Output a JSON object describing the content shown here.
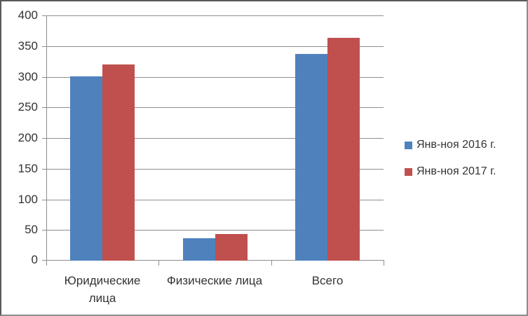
{
  "window": {
    "background": "#ffffff",
    "border_color": "#8c8c8c"
  },
  "chart_data": {
    "type": "bar",
    "title": "",
    "xlabel": "",
    "ylabel": "",
    "categories": [
      "Юридические лица",
      "Физические лица",
      "Всего"
    ],
    "category_display_lines": [
      [
        "Юридические",
        "лица"
      ],
      [
        "Физические лица"
      ],
      [
        "Всего"
      ]
    ],
    "series": [
      {
        "name": "Янв-ноя 2016 г.",
        "color": "#4F81BD",
        "values": [
          300,
          37,
          337
        ]
      },
      {
        "name": "Янв-ноя 2017 г.",
        "color": "#C0504D",
        "values": [
          320,
          43,
          363
        ]
      }
    ],
    "ylim": [
      0,
      400
    ],
    "ytick_step": 50,
    "yticks": [
      0,
      50,
      100,
      150,
      200,
      250,
      300,
      350,
      400
    ],
    "grid": true,
    "legend_position": "right",
    "axis_color": "#8e8e8e",
    "gridline_color": "#8e8e8e",
    "text_color": "#333333"
  }
}
